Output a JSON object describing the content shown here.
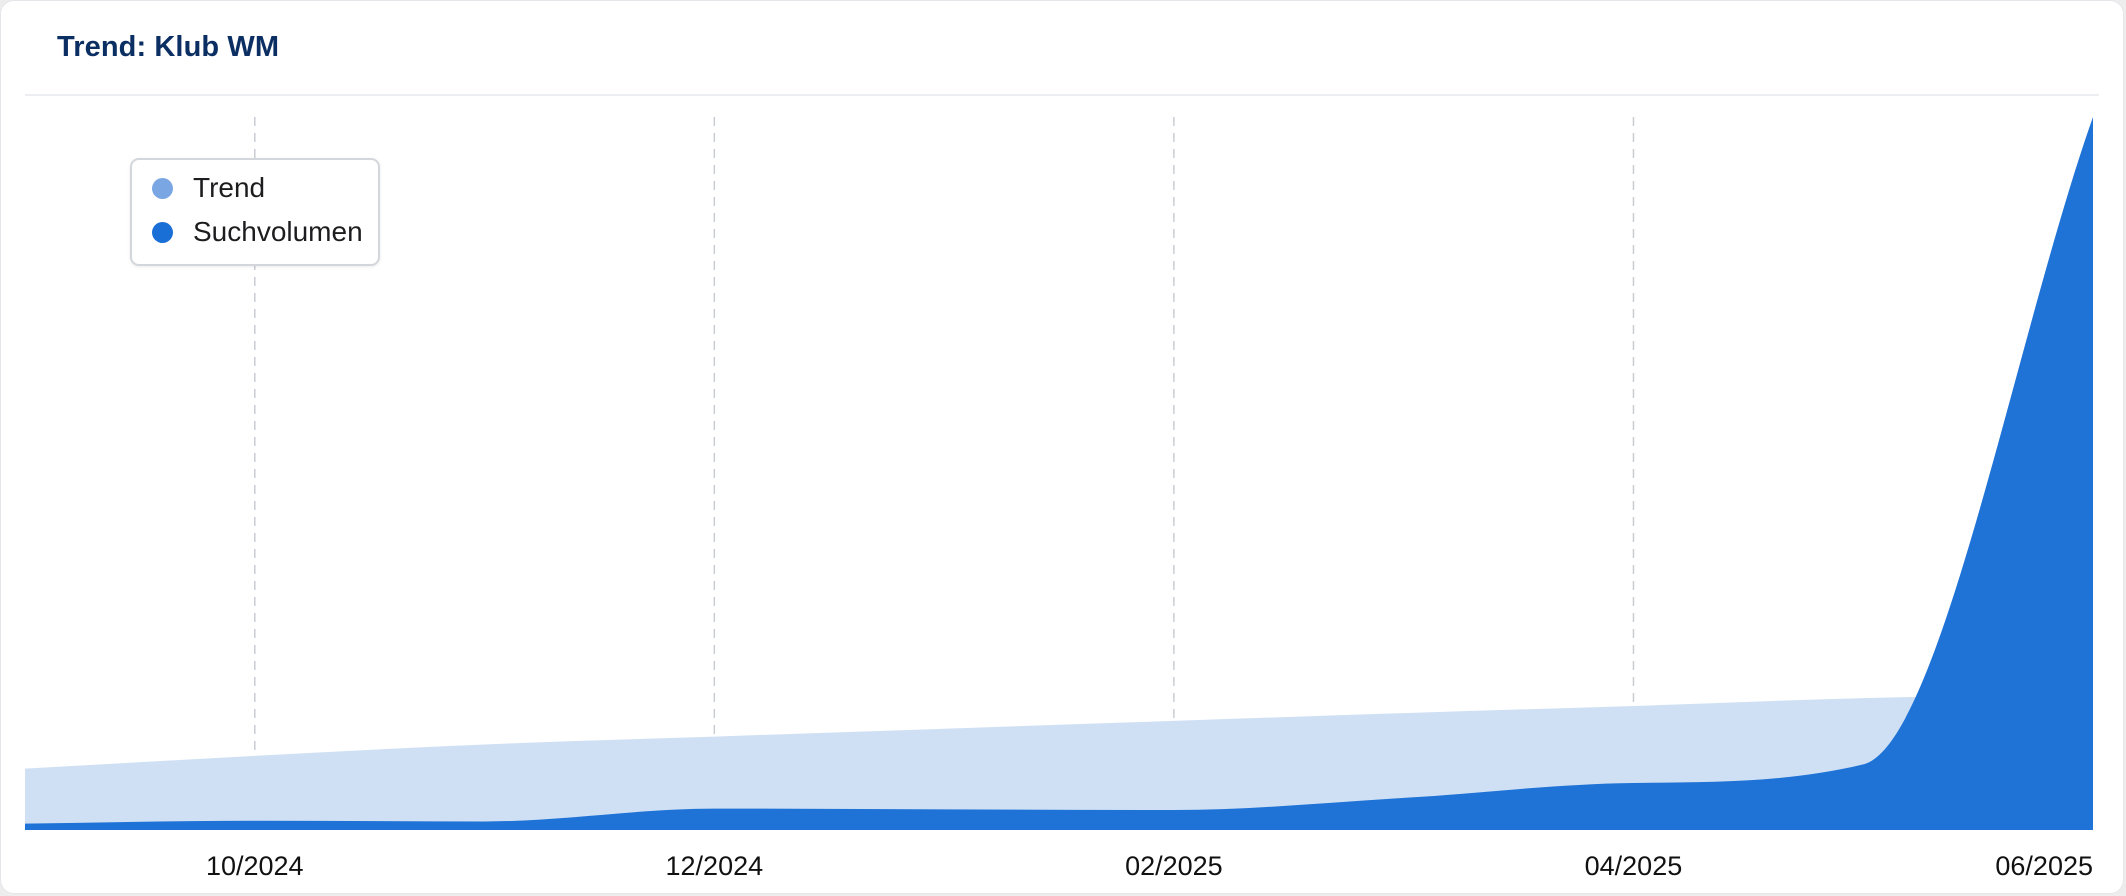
{
  "card": {
    "title": "Trend: Klub WM"
  },
  "chart_data": {
    "type": "area",
    "title": "Trend: Klub WM",
    "xlabel": "",
    "ylabel": "",
    "grid": "vertical dashed",
    "legend_placement": "top-left",
    "x_domain": [
      "09/2024",
      "06/2025"
    ],
    "x": [
      "09/2024",
      "10/2024",
      "11/2024",
      "12/2024",
      "01/2025",
      "02/2025",
      "03/2025",
      "04/2025",
      "05/2025",
      "06/2025"
    ],
    "x_ticks": [
      "10/2024",
      "12/2024",
      "02/2025",
      "04/2025",
      "06/2025"
    ],
    "ylim": [
      0,
      100
    ],
    "series": [
      {
        "name": "Trend",
        "color": "#cfe0f4",
        "legend_color": "#7aa7e3",
        "values": [
          8.6,
          10.4,
          12.0,
          13.1,
          14.2,
          15.3,
          16.4,
          17.4,
          18.5,
          19.1
        ]
      },
      {
        "name": "Suchvolumen",
        "color": "#1f72d6",
        "legend_color": "#1a6fd6",
        "values": [
          0.9,
          1.3,
          1.2,
          3.0,
          2.9,
          2.8,
          4.5,
          6.6,
          9.2,
          100
        ]
      }
    ]
  }
}
